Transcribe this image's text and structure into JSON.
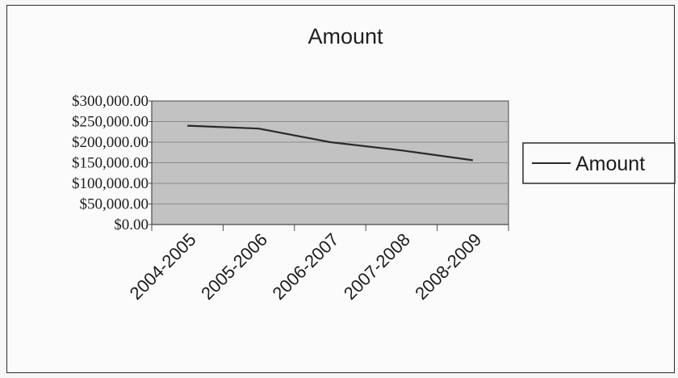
{
  "chart_data": {
    "type": "line",
    "title": "Amount",
    "xlabel": "",
    "ylabel": "",
    "categories": [
      "2004-2005",
      "2005-2006",
      "2006-2007",
      "2007-2008",
      "2008-2009"
    ],
    "series": [
      {
        "name": "Amount",
        "values": [
          240000,
          233000,
          200000,
          180000,
          156000
        ]
      }
    ],
    "ylim": [
      0,
      300000
    ],
    "yticks": [
      "$0.00",
      "$50,000.00",
      "$100,000.00",
      "$150,000.00",
      "$200,000.00",
      "$250,000.00",
      "$300,000.00"
    ],
    "grid": true,
    "legend": "right",
    "colors": {
      "line": "#2a2a2a",
      "plot_area": "#c2c2c2",
      "gridline": "#8c8c8c",
      "axis": "#4a4a4a"
    }
  }
}
